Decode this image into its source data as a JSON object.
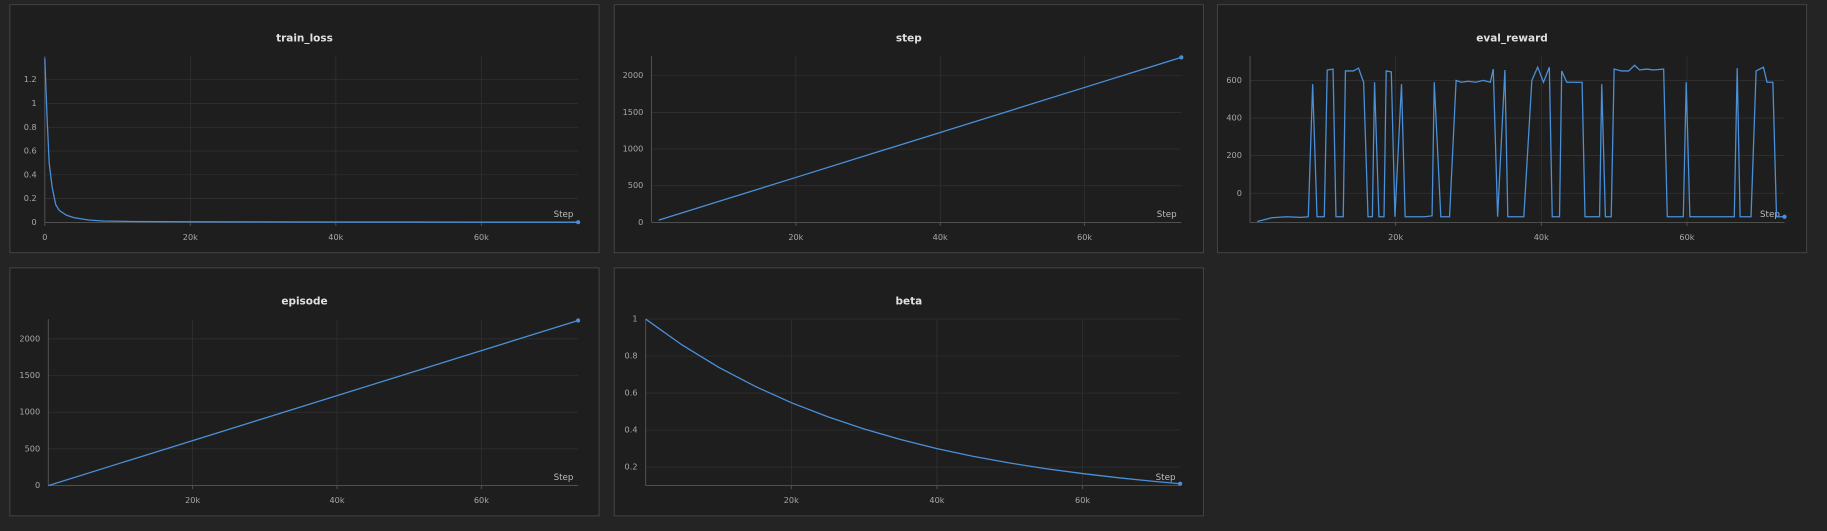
{
  "chart_data": [
    {
      "type": "line",
      "title": "train_loss",
      "xlabel": "Step",
      "color": "#4a90d9",
      "grid": true,
      "x": [
        0,
        300,
        600,
        1000,
        1500,
        2000,
        3000,
        4000,
        6000,
        8000,
        12000,
        20000,
        30000,
        40000,
        50000,
        60000,
        70000,
        73300
      ],
      "values": [
        1.38,
        0.9,
        0.5,
        0.3,
        0.15,
        0.1,
        0.06,
        0.04,
        0.02,
        0.012,
        0.008,
        0.005,
        0.004,
        0.003,
        0.003,
        0.002,
        0.002,
        0.002
      ],
      "xlim": [
        0,
        73300
      ],
      "ylim": [
        0,
        1.4
      ],
      "xticks": [
        0,
        {
          "value": 20000,
          "label": "20k"
        },
        {
          "value": 40000,
          "label": "40k"
        },
        {
          "value": 60000,
          "label": "60k"
        }
      ],
      "yticks": [
        0,
        0.2,
        0.4,
        0.6,
        0.8,
        1,
        1.2
      ]
    },
    {
      "type": "line",
      "title": "step",
      "xlabel": "Step",
      "color": "#4a90d9",
      "grid": true,
      "x": [
        1000,
        10000,
        20000,
        30000,
        40000,
        50000,
        60000,
        70000,
        73400
      ],
      "values": [
        31,
        307,
        613,
        920,
        1226,
        1533,
        1840,
        2146,
        2250
      ],
      "xlim": [
        0,
        73400
      ],
      "ylim": [
        0,
        2270
      ],
      "xticks": [
        {
          "value": 20000,
          "label": "20k"
        },
        {
          "value": 40000,
          "label": "40k"
        },
        {
          "value": 60000,
          "label": "60k"
        }
      ],
      "yticks": [
        0,
        500,
        1000,
        1500,
        2000
      ]
    },
    {
      "type": "line",
      "title": "eval_reward",
      "xlabel": "Step",
      "color": "#4a90d9",
      "grid": true,
      "x": [
        1000,
        3000,
        5000,
        7000,
        8000,
        8600,
        9200,
        10200,
        10600,
        11400,
        11800,
        12800,
        13100,
        14200,
        14900,
        15600,
        16200,
        16800,
        17100,
        17700,
        18400,
        18700,
        19400,
        19900,
        20800,
        21300,
        24000,
        25000,
        25300,
        26200,
        27400,
        28300,
        29000,
        30000,
        31000,
        32000,
        33000,
        33400,
        34000,
        35000,
        35400,
        37600,
        38700,
        39500,
        40300,
        41100,
        41500,
        42500,
        42800,
        43500,
        45600,
        46000,
        48000,
        48300,
        48800,
        49600,
        50000,
        51000,
        52000,
        52800,
        53500,
        54500,
        55400,
        56800,
        57300,
        59500,
        59900,
        60400,
        64000,
        66500,
        66900,
        67300,
        68800,
        69500,
        70500,
        71000,
        71800,
        72300,
        73400
      ],
      "values": [
        -150,
        -130,
        -125,
        -128,
        -125,
        580,
        -125,
        -125,
        655,
        660,
        -125,
        -125,
        650,
        650,
        665,
        590,
        -125,
        -125,
        590,
        -125,
        -125,
        650,
        645,
        -125,
        580,
        -125,
        -125,
        -120,
        590,
        -125,
        -125,
        600,
        590,
        595,
        590,
        600,
        590,
        660,
        -125,
        655,
        -125,
        -125,
        600,
        670,
        590,
        670,
        -125,
        -125,
        650,
        590,
        590,
        -125,
        -125,
        580,
        -125,
        -125,
        660,
        650,
        650,
        680,
        655,
        660,
        655,
        660,
        -125,
        -125,
        590,
        -125,
        -125,
        -125,
        665,
        -125,
        -125,
        650,
        670,
        590,
        590,
        -125,
        -125
      ],
      "xlim": [
        0,
        73400
      ],
      "ylim": [
        -155,
        730
      ],
      "xticks": [
        {
          "value": 20000,
          "label": "20k"
        },
        {
          "value": 40000,
          "label": "40k"
        },
        {
          "value": 60000,
          "label": "60k"
        }
      ],
      "yticks": [
        0,
        200,
        400,
        600
      ]
    },
    {
      "type": "line",
      "title": "episode",
      "xlabel": "Step",
      "color": "#4a90d9",
      "grid": true,
      "x": [
        0,
        10000,
        20000,
        30000,
        40000,
        50000,
        60000,
        70000,
        73400
      ],
      "values": [
        0,
        307,
        613,
        920,
        1226,
        1533,
        1840,
        2146,
        2250
      ],
      "xlim": [
        0,
        73400
      ],
      "ylim": [
        0,
        2270
      ],
      "xticks": [
        {
          "value": 20000,
          "label": "20k"
        },
        {
          "value": 40000,
          "label": "40k"
        },
        {
          "value": 60000,
          "label": "60k"
        }
      ],
      "yticks": [
        0,
        500,
        1000,
        1500,
        2000
      ]
    },
    {
      "type": "line",
      "title": "beta",
      "xlabel": "Step",
      "color": "#4a90d9",
      "grid": true,
      "x": [
        0,
        5000,
        10000,
        15000,
        20000,
        25000,
        30000,
        35000,
        40000,
        45000,
        50000,
        55000,
        60000,
        65000,
        70000,
        73400
      ],
      "values": [
        1,
        0.86,
        0.74,
        0.637,
        0.548,
        0.472,
        0.406,
        0.349,
        0.3,
        0.258,
        0.222,
        0.191,
        0.165,
        0.142,
        0.122,
        0.11
      ],
      "xlim": [
        0,
        73400
      ],
      "ylim": [
        0.1,
        1
      ],
      "xticks": [
        {
          "value": 20000,
          "label": "20k"
        },
        {
          "value": 40000,
          "label": "40k"
        },
        {
          "value": 60000,
          "label": "60k"
        }
      ],
      "yticks": [
        0.2,
        0.4,
        0.6,
        0.8,
        1
      ]
    }
  ]
}
